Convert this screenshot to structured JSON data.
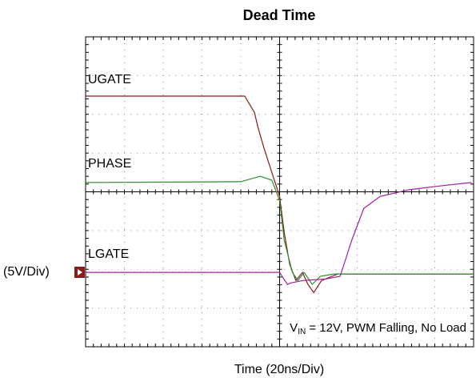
{
  "chart_data": {
    "type": "line",
    "title": "Dead Time",
    "x_label": "Time (20ns/Div)",
    "scale_label": "(5V/Div)",
    "annotation": [
      "V",
      "IN",
      " = 12V, PWM Falling, No Load"
    ],
    "xlim": [
      0,
      10
    ],
    "ylim": [
      0,
      8
    ],
    "xticks": [
      0,
      1,
      2,
      3,
      4,
      5,
      6,
      7,
      8,
      9,
      10
    ],
    "yticks": [
      0,
      1,
      2,
      3,
      4,
      5,
      6,
      7,
      8
    ],
    "grid": true,
    "series": [
      {
        "name": "UGATE",
        "color": "#8b1a1a",
        "x": [
          0,
          4.1,
          4.35,
          4.45,
          4.6,
          4.8,
          5.0,
          5.12,
          5.26,
          5.42,
          5.59,
          5.73,
          5.88,
          6.08,
          6.5,
          10
        ],
        "values": [
          6.47,
          6.47,
          6.05,
          5.64,
          5.12,
          4.5,
          3.88,
          2.95,
          2.13,
          1.71,
          1.92,
          1.61,
          1.4,
          1.71,
          1.88,
          1.88
        ]
      },
      {
        "name": "PHASE",
        "color": "#2e8b2e",
        "x": [
          0,
          4.0,
          4.5,
          4.8,
          5.0,
          5.12,
          5.33,
          5.47,
          5.63,
          5.84,
          6.05,
          6.4,
          10
        ],
        "values": [
          4.24,
          4.26,
          4.4,
          4.3,
          3.78,
          2.75,
          1.92,
          1.71,
          1.92,
          1.61,
          1.82,
          1.88,
          1.88
        ]
      },
      {
        "name": "LGATE",
        "color": "#a020a0",
        "x": [
          0,
          5.0,
          5.2,
          5.3,
          5.6,
          6.2,
          6.56,
          6.86,
          7.17,
          7.59,
          8.31,
          9.13,
          9.95
        ],
        "values": [
          1.92,
          1.92,
          1.61,
          1.65,
          1.71,
          1.75,
          1.82,
          2.75,
          3.57,
          3.88,
          4.05,
          4.15,
          4.24
        ]
      }
    ]
  }
}
